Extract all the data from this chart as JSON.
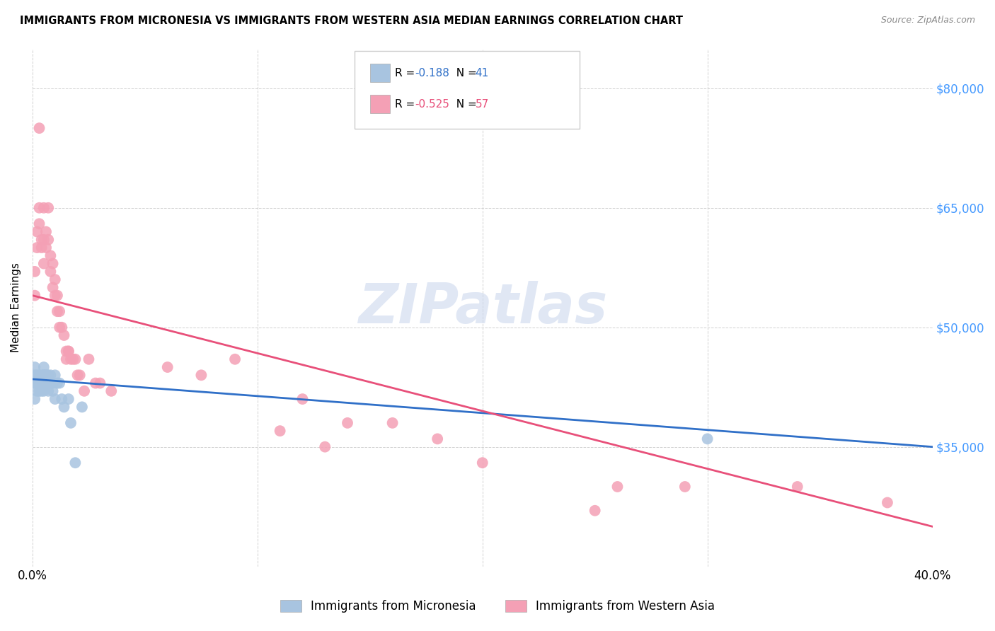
{
  "title": "IMMIGRANTS FROM MICRONESIA VS IMMIGRANTS FROM WESTERN ASIA MEDIAN EARNINGS CORRELATION CHART",
  "source": "Source: ZipAtlas.com",
  "ylabel": "Median Earnings",
  "xlim": [
    0.0,
    0.4
  ],
  "ylim": [
    20000,
    85000
  ],
  "yticks": [
    35000,
    50000,
    65000,
    80000
  ],
  "ytick_labels": [
    "$35,000",
    "$50,000",
    "$65,000",
    "$80,000"
  ],
  "xticks": [
    0.0,
    0.1,
    0.2,
    0.3,
    0.4
  ],
  "xtick_labels": [
    "0.0%",
    "",
    "",
    "",
    "40.0%"
  ],
  "legend_r_blue": "-0.188",
  "legend_n_blue": "41",
  "legend_r_pink": "-0.525",
  "legend_n_pink": "57",
  "legend_label_blue": "Immigrants from Micronesia",
  "legend_label_pink": "Immigrants from Western Asia",
  "blue_color": "#a8c4e0",
  "pink_color": "#f4a0b5",
  "blue_line_color": "#3070c8",
  "pink_line_color": "#e8507a",
  "r_value_color": "#3070c8",
  "n_value_color": "#3070c8",
  "watermark_color": "#ccd8ee",
  "blue_scatter_x": [
    0.001,
    0.001,
    0.001,
    0.002,
    0.002,
    0.002,
    0.002,
    0.003,
    0.003,
    0.003,
    0.003,
    0.004,
    0.004,
    0.004,
    0.005,
    0.005,
    0.005,
    0.005,
    0.005,
    0.006,
    0.006,
    0.006,
    0.007,
    0.007,
    0.007,
    0.008,
    0.008,
    0.009,
    0.009,
    0.01,
    0.01,
    0.011,
    0.012,
    0.013,
    0.014,
    0.016,
    0.017,
    0.019,
    0.022,
    0.3,
    0.001
  ],
  "blue_scatter_y": [
    43000,
    44000,
    41000,
    43000,
    44000,
    42000,
    43000,
    43000,
    44000,
    42000,
    43000,
    44000,
    43000,
    42000,
    45000,
    44000,
    43000,
    44000,
    42000,
    44000,
    43000,
    44000,
    44000,
    43000,
    42000,
    43000,
    44000,
    43000,
    42000,
    44000,
    41000,
    43000,
    43000,
    41000,
    40000,
    41000,
    38000,
    33000,
    40000,
    36000,
    45000
  ],
  "pink_scatter_x": [
    0.001,
    0.001,
    0.002,
    0.002,
    0.003,
    0.003,
    0.004,
    0.004,
    0.005,
    0.005,
    0.005,
    0.006,
    0.006,
    0.007,
    0.007,
    0.008,
    0.008,
    0.009,
    0.009,
    0.01,
    0.01,
    0.011,
    0.011,
    0.012,
    0.012,
    0.013,
    0.014,
    0.015,
    0.015,
    0.016,
    0.016,
    0.017,
    0.018,
    0.019,
    0.02,
    0.021,
    0.023,
    0.025,
    0.028,
    0.03,
    0.035,
    0.06,
    0.075,
    0.09,
    0.11,
    0.13,
    0.14,
    0.18,
    0.2,
    0.26,
    0.29,
    0.34,
    0.38,
    0.12,
    0.003,
    0.25,
    0.16
  ],
  "pink_scatter_y": [
    54000,
    57000,
    60000,
    62000,
    63000,
    65000,
    61000,
    60000,
    61000,
    65000,
    58000,
    62000,
    60000,
    61000,
    65000,
    59000,
    57000,
    58000,
    55000,
    56000,
    54000,
    54000,
    52000,
    50000,
    52000,
    50000,
    49000,
    47000,
    46000,
    47000,
    47000,
    46000,
    46000,
    46000,
    44000,
    44000,
    42000,
    46000,
    43000,
    43000,
    42000,
    45000,
    44000,
    46000,
    37000,
    35000,
    38000,
    36000,
    33000,
    30000,
    30000,
    30000,
    28000,
    41000,
    75000,
    27000,
    38000
  ]
}
